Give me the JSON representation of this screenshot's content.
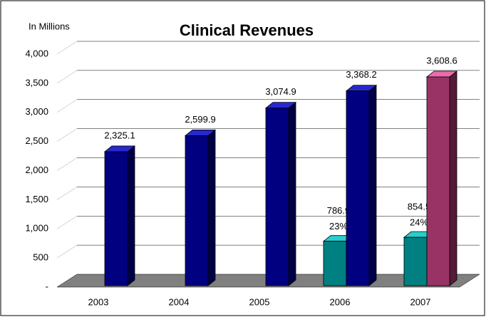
{
  "chart_data": {
    "type": "bar3d",
    "title": "Clinical Revenues",
    "unit_label": "In Millions",
    "categories": [
      "2003",
      "2004",
      "2005",
      "2006",
      "2007"
    ],
    "series": [
      {
        "values": [
          null,
          null,
          null,
          786.9,
          854.5
        ],
        "value_labels": [
          null,
          null,
          null,
          "786.9",
          "854.5"
        ],
        "share_labels": [
          null,
          null,
          null,
          "23%",
          "24%"
        ],
        "color": "#008080"
      },
      {
        "values": [
          2325.1,
          2599.9,
          3074.9,
          3368.2,
          3608.6
        ],
        "value_labels": [
          "2,325.1",
          "2,599.9",
          "3,074.9",
          "3,368.2",
          "3,608.6"
        ],
        "colors": [
          "#000080",
          "#000080",
          "#000080",
          "#000080",
          "#993366"
        ]
      }
    ],
    "ylim": [
      0,
      4000
    ],
    "yticks": [
      {
        "value": 0,
        "label": "-"
      },
      500,
      {
        "value": 1000,
        "label": "1,000"
      },
      {
        "value": 1500,
        "label": "1,500"
      },
      {
        "value": 2000,
        "label": "2,000"
      },
      {
        "value": 2500,
        "label": "2,500"
      },
      {
        "value": 3000,
        "label": "3,000"
      },
      {
        "value": 3500,
        "label": "3,500"
      },
      {
        "value": 4000,
        "label": "4,000"
      }
    ],
    "grid": true
  }
}
